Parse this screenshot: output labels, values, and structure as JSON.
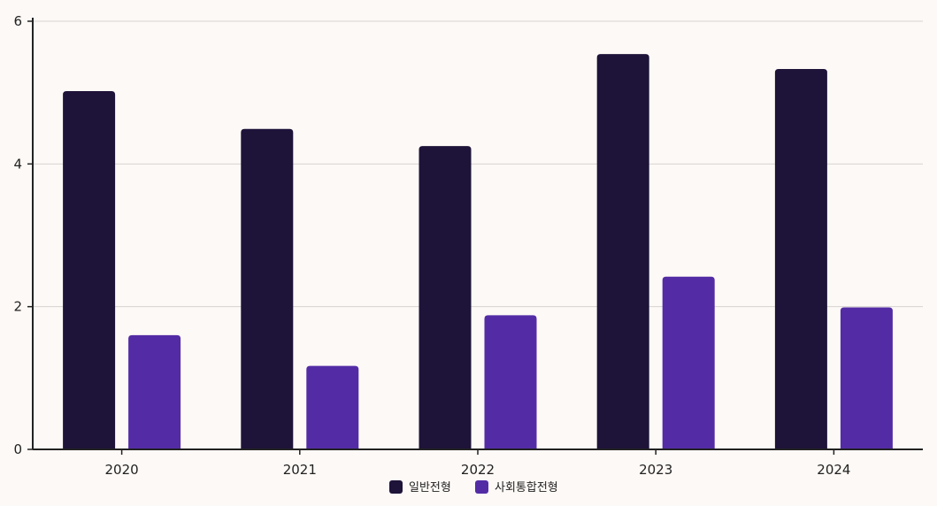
{
  "chart_data": {
    "type": "bar",
    "categories": [
      "2020",
      "2021",
      "2022",
      "2023",
      "2024"
    ],
    "series": [
      {
        "name": "일반전형",
        "values": [
          5.02,
          4.49,
          4.25,
          5.54,
          5.33
        ],
        "color": "#1e1339"
      },
      {
        "name": "사회통합전형",
        "values": [
          1.6,
          1.17,
          1.88,
          2.42,
          1.99
        ],
        "color": "#532ca5"
      }
    ],
    "ylim": [
      0,
      6
    ],
    "yticks": [
      0,
      2,
      4,
      6
    ],
    "grid": true,
    "legend": "bottom-center",
    "title": "",
    "xlabel": "",
    "ylabel": ""
  }
}
